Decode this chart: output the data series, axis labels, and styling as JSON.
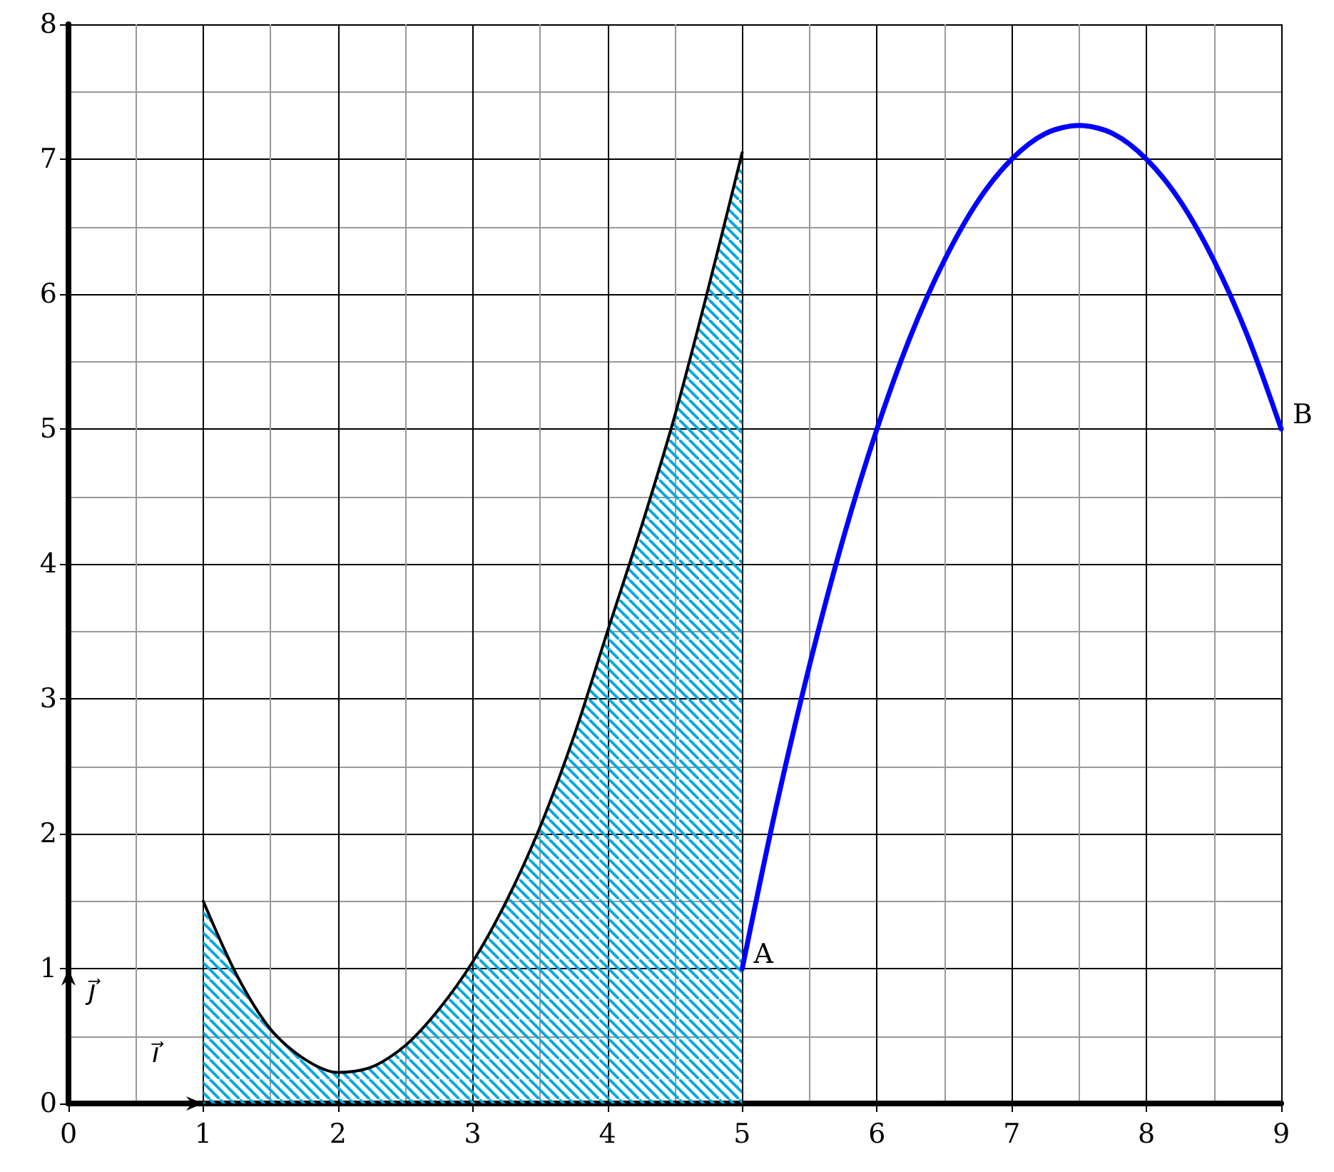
{
  "chart_data": {
    "type": "line",
    "xlim": [
      0,
      9
    ],
    "xticks": [
      0,
      1,
      2,
      3,
      4,
      5,
      6,
      7,
      8,
      9
    ],
    "ylim": [
      0,
      8
    ],
    "yticks": [
      0,
      1,
      2,
      3,
      4,
      5,
      6,
      7,
      8
    ],
    "grid": true,
    "marker": "none",
    "line_style": "solid",
    "series": [
      {
        "type": "area",
        "color": "#00a8e0",
        "x": [
          1,
          1.25,
          1.5,
          1.75,
          2,
          2.25,
          2.5,
          2.75,
          3,
          3.25,
          3.5,
          3.75,
          4,
          4.25,
          4.5,
          4.75,
          5
        ],
        "values": [
          1.5,
          0.95,
          0.55,
          0.33,
          0.23,
          0.27,
          0.43,
          0.7,
          1.05,
          1.5,
          2.05,
          2.72,
          3.5,
          4.27,
          5.1,
          6.05,
          7.05
        ]
      },
      {
        "color": "#0000ff",
        "x": [
          5,
          5.25,
          5.5,
          5.75,
          6,
          6.25,
          6.5,
          6.75,
          7,
          7.25,
          7.5,
          7.75,
          8,
          8.25,
          8.5,
          8.75,
          9
        ],
        "values": [
          1,
          2.19,
          3.25,
          4.19,
          5,
          5.69,
          6.25,
          6.69,
          7,
          7.19,
          7.25,
          7.19,
          7,
          6.69,
          6.25,
          5.69,
          5
        ]
      }
    ],
    "annotations": [
      {
        "text": "A",
        "x": 5,
        "y": 1
      },
      {
        "text": "B",
        "x": 9,
        "y": 5
      },
      "ı⃗",
      "ȷ⃗"
    ]
  }
}
